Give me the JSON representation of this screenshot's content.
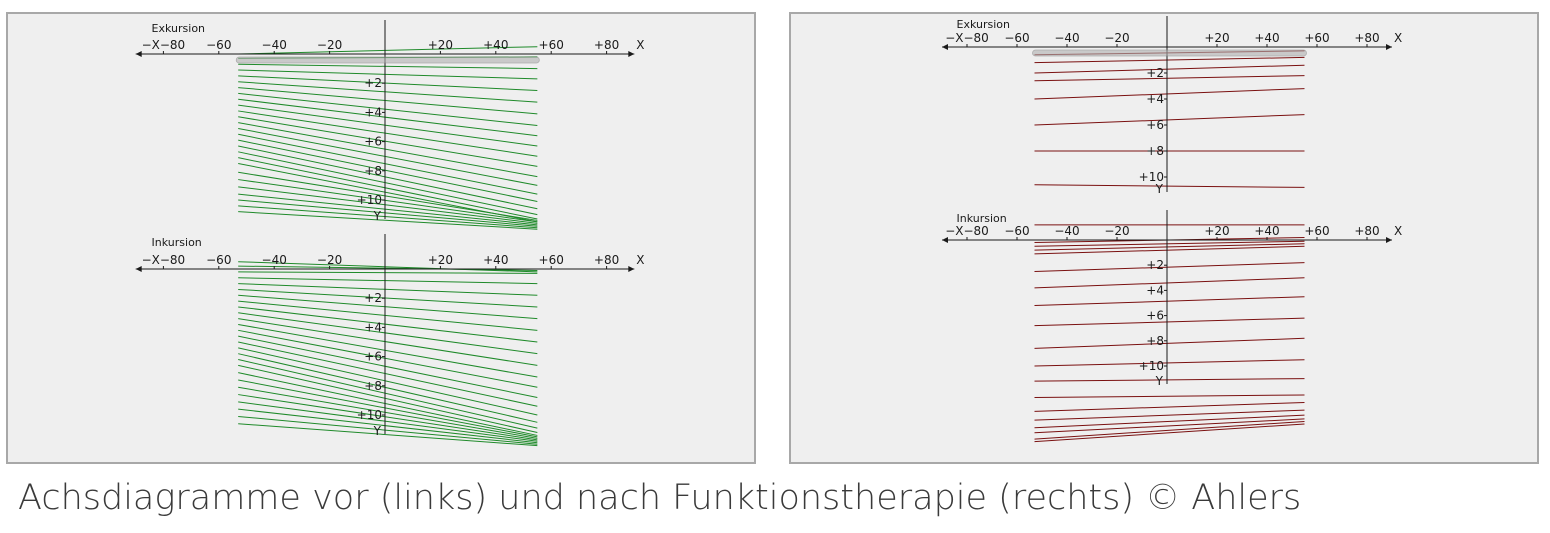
{
  "caption": "Achsdiagramme vor (links) und nach Funktionstherapie (rechts) © Ahlers",
  "colors": {
    "left_traces": "#1f8a2a",
    "right_traces": "#7a1010",
    "axis": "#1a1a1a",
    "panel_bg": "#efefef",
    "panel_border": "#a8a8a8",
    "points_fill": "#b0b0b0"
  },
  "chart_data": [
    {
      "type": "line",
      "panel": "left",
      "axis_labels": {
        "x_ticks": [
          "−X−80",
          "−60",
          "−40",
          "−20",
          "+20",
          "+40",
          "+60",
          "+80"
        ],
        "x_letter": "X",
        "y_ticks": [
          "+2",
          "+4",
          "+6",
          "+8",
          "+10"
        ],
        "y_letter": "Y"
      },
      "xlim": [
        -85,
        85
      ],
      "ylim": [
        0,
        11.5
      ],
      "subplots": [
        {
          "title": "Exkursion",
          "x_range": [
            -53,
            55
          ],
          "series": [
            {
              "y_start": 0.0,
              "y_end": -0.5
            },
            {
              "y_start": 0.3,
              "y_end": 0.2
            },
            {
              "y_start": 0.7,
              "y_end": 1.0
            },
            {
              "y_start": 1.1,
              "y_end": 1.7
            },
            {
              "y_start": 1.5,
              "y_end": 2.5
            },
            {
              "y_start": 1.9,
              "y_end": 3.3
            },
            {
              "y_start": 2.3,
              "y_end": 4.1
            },
            {
              "y_start": 2.7,
              "y_end": 4.9
            },
            {
              "y_start": 3.1,
              "y_end": 5.6
            },
            {
              "y_start": 3.5,
              "y_end": 6.3
            },
            {
              "y_start": 3.9,
              "y_end": 7.0
            },
            {
              "y_start": 4.3,
              "y_end": 7.7
            },
            {
              "y_start": 4.7,
              "y_end": 8.4
            },
            {
              "y_start": 5.1,
              "y_end": 9.0
            },
            {
              "y_start": 5.5,
              "y_end": 9.6
            },
            {
              "y_start": 5.9,
              "y_end": 10.1
            },
            {
              "y_start": 6.3,
              "y_end": 10.6
            },
            {
              "y_start": 6.7,
              "y_end": 11.0
            },
            {
              "y_start": 7.1,
              "y_end": 11.3
            },
            {
              "y_start": 7.5,
              "y_end": 11.5
            },
            {
              "y_start": 8.1,
              "y_end": 11.4
            },
            {
              "y_start": 8.6,
              "y_end": 11.5
            },
            {
              "y_start": 9.1,
              "y_end": 11.6
            },
            {
              "y_start": 9.6,
              "y_end": 11.7
            },
            {
              "y_start": 10.0,
              "y_end": 11.8
            },
            {
              "y_start": 10.4,
              "y_end": 11.9
            },
            {
              "y_start": 10.8,
              "y_end": 12.0
            }
          ]
        },
        {
          "title": "Inkursion",
          "x_range": [
            -53,
            55
          ],
          "series": [
            {
              "y_start": -0.5,
              "y_end": 0.2
            },
            {
              "y_start": -0.2,
              "y_end": 0.1
            },
            {
              "y_start": 0.0,
              "y_end": 0.0
            },
            {
              "y_start": 0.2,
              "y_end": 0.3
            },
            {
              "y_start": 0.6,
              "y_end": 1.0
            },
            {
              "y_start": 1.0,
              "y_end": 1.8
            },
            {
              "y_start": 1.4,
              "y_end": 2.6
            },
            {
              "y_start": 1.8,
              "y_end": 3.4
            },
            {
              "y_start": 2.2,
              "y_end": 4.2
            },
            {
              "y_start": 2.6,
              "y_end": 5.0
            },
            {
              "y_start": 3.0,
              "y_end": 5.8
            },
            {
              "y_start": 3.4,
              "y_end": 6.6
            },
            {
              "y_start": 3.8,
              "y_end": 7.4
            },
            {
              "y_start": 4.2,
              "y_end": 8.1
            },
            {
              "y_start": 4.6,
              "y_end": 8.8
            },
            {
              "y_start": 5.0,
              "y_end": 9.4
            },
            {
              "y_start": 5.4,
              "y_end": 10.0
            },
            {
              "y_start": 5.8,
              "y_end": 10.5
            },
            {
              "y_start": 6.2,
              "y_end": 10.9
            },
            {
              "y_start": 6.6,
              "y_end": 11.2
            },
            {
              "y_start": 7.1,
              "y_end": 11.4
            },
            {
              "y_start": 7.6,
              "y_end": 11.5
            },
            {
              "y_start": 8.1,
              "y_end": 11.6
            },
            {
              "y_start": 8.6,
              "y_end": 11.7
            },
            {
              "y_start": 9.1,
              "y_end": 11.8
            },
            {
              "y_start": 9.6,
              "y_end": 11.9
            },
            {
              "y_start": 10.1,
              "y_end": 12.0
            },
            {
              "y_start": 10.6,
              "y_end": 12.1
            }
          ]
        }
      ]
    },
    {
      "type": "line",
      "panel": "right",
      "axis_labels": {
        "x_ticks": [
          "−X−80",
          "−60",
          "−40",
          "−20",
          "+20",
          "+40",
          "+60",
          "+80"
        ],
        "x_letter": "X",
        "y_ticks": [
          "+2",
          "+4",
          "+6",
          "+8",
          "+10"
        ],
        "y_letter": "Y"
      },
      "xlim": [
        -85,
        85
      ],
      "ylim": [
        0,
        11.5
      ],
      "subplots": [
        {
          "title": "Exkursion",
          "x_range": [
            -53,
            55
          ],
          "series": [
            {
              "y_start": 0.0,
              "y_end": 0.0
            },
            {
              "y_start": 0.6,
              "y_end": 0.3
            },
            {
              "y_start": 1.2,
              "y_end": 0.8
            },
            {
              "y_start": 2.0,
              "y_end": 1.4
            },
            {
              "y_start": 2.6,
              "y_end": 2.2
            },
            {
              "y_start": 4.0,
              "y_end": 3.2
            },
            {
              "y_start": 6.0,
              "y_end": 5.2
            },
            {
              "y_start": 8.0,
              "y_end": 8.0
            },
            {
              "y_start": 10.6,
              "y_end": 10.8
            }
          ]
        },
        {
          "title": "Inkursion",
          "x_range": [
            -53,
            55
          ],
          "series": [
            {
              "y_start": -1.2,
              "y_end": -1.2
            },
            {
              "y_start": 0.2,
              "y_end": -0.2
            },
            {
              "y_start": 0.5,
              "y_end": 0.1
            },
            {
              "y_start": 0.8,
              "y_end": 0.3
            },
            {
              "y_start": 1.1,
              "y_end": 0.5
            },
            {
              "y_start": 2.5,
              "y_end": 1.8
            },
            {
              "y_start": 3.8,
              "y_end": 3.0
            },
            {
              "y_start": 5.2,
              "y_end": 4.5
            },
            {
              "y_start": 6.8,
              "y_end": 6.2
            },
            {
              "y_start": 8.6,
              "y_end": 7.8
            },
            {
              "y_start": 10.0,
              "y_end": 9.5
            },
            {
              "y_start": 11.2,
              "y_end": 11.0
            },
            {
              "y_start": 12.5,
              "y_end": 12.3
            },
            {
              "y_start": 13.6,
              "y_end": 12.9
            },
            {
              "y_start": 14.3,
              "y_end": 13.5
            },
            {
              "y_start": 14.9,
              "y_end": 13.9
            },
            {
              "y_start": 15.3,
              "y_end": 14.2
            },
            {
              "y_start": 15.8,
              "y_end": 14.4
            },
            {
              "y_start": 16.0,
              "y_end": 14.6
            }
          ]
        }
      ]
    }
  ]
}
